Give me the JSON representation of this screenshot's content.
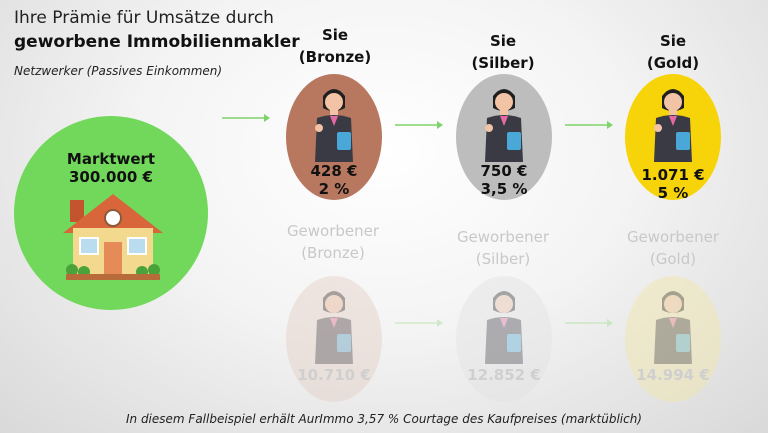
{
  "header": {
    "line1": "Ihre Prämie für Umsätze durch",
    "line2": "geworbene Immobilienmakler",
    "subtitle": "Netzwerker (Passives Einkommen)"
  },
  "market": {
    "label": "Marktwert",
    "value": "300.000 €"
  },
  "tiers": [
    {
      "line1": "Sie",
      "line2": "(Bronze)",
      "amount": "428 €",
      "percent": "2 %",
      "color": "#b7785f"
    },
    {
      "line1": "Sie",
      "line2": "(Silber)",
      "amount": "750 €",
      "percent": "3,5 %",
      "color": "#bdbdbd"
    },
    {
      "line1": "Sie",
      "line2": "(Gold)",
      "amount": "1.071 €",
      "percent": "5 %",
      "color": "#f7d40a"
    }
  ],
  "recruited": [
    {
      "line1": "Geworbener",
      "line2": "(Bronze)",
      "amount": "10.710 €",
      "color": "#e4cfc4"
    },
    {
      "line1": "Geworbener",
      "line2": "(Silber)",
      "amount": "12.852 €",
      "color": "#e3e3e3"
    },
    {
      "line1": "Geworbener",
      "line2": "(Gold)",
      "amount": "14.994 €",
      "color": "#f2e7a8"
    }
  ],
  "footer": "In diesem Fallbeispiel erhält AurImmo 3,57 % Courtage des Kaufpreises (marktüblich)",
  "colors": {
    "market": "#72d85b",
    "arrow": "#7ed36b"
  }
}
